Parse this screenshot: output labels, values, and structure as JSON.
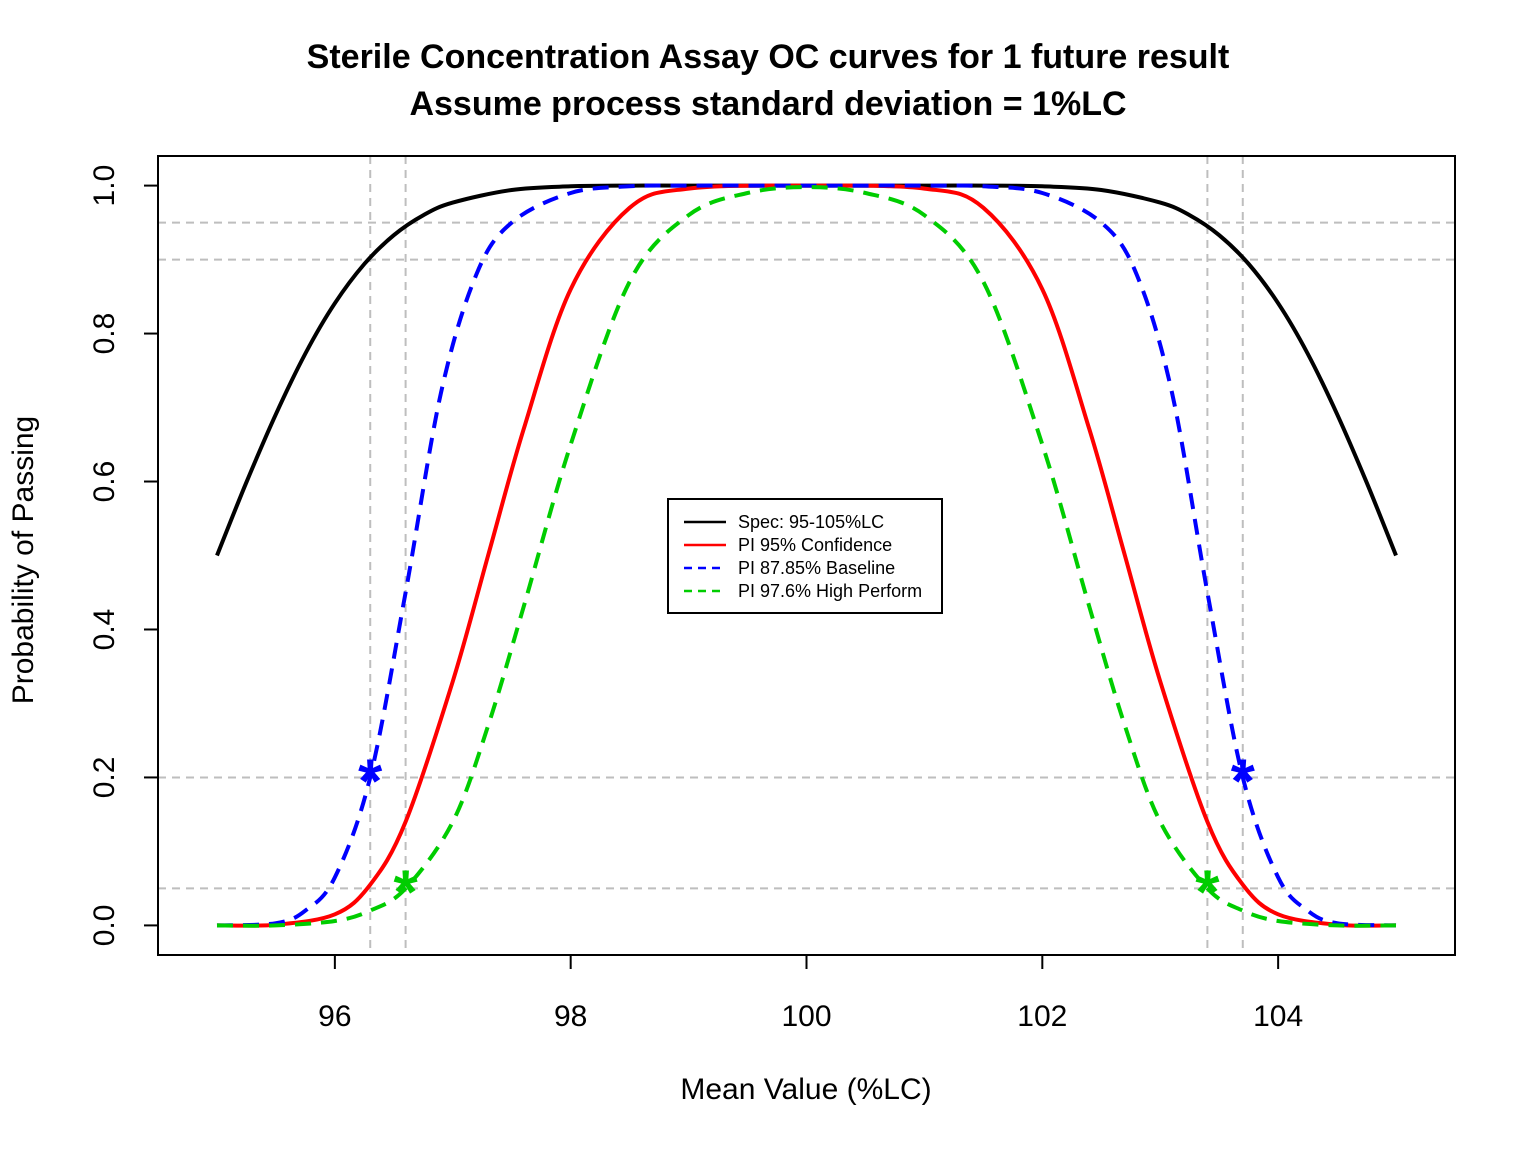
{
  "chart_data": {
    "type": "line",
    "title": "Sterile Concentration Assay OC curves for 1 future result",
    "subtitle": "Assume process standard deviation = 1%LC",
    "xlabel": "Mean Value (%LC)",
    "ylabel": "Probability of Passing",
    "xlim": [
      94.5,
      105.5
    ],
    "ylim": [
      -0.04,
      1.04
    ],
    "x_ticks": [
      96,
      98,
      100,
      102,
      104
    ],
    "y_ticks": [
      0.0,
      0.2,
      0.4,
      0.6,
      0.8,
      1.0
    ],
    "x_tick_labels": [
      "96",
      "98",
      "100",
      "102",
      "104"
    ],
    "y_tick_labels": [
      "0.0",
      "0.2",
      "0.4",
      "0.6",
      "0.8",
      "1.0"
    ],
    "grid": false,
    "reference_lines": {
      "horizontal": [
        0.05,
        0.2,
        0.9,
        0.95
      ],
      "vertical": [
        96.3,
        96.6,
        103.4,
        103.7
      ],
      "color": "#bebebe"
    },
    "legend_position": "center",
    "series": [
      {
        "name": "Spec: 95-105%LC",
        "color": "#000000",
        "style": "solid",
        "x": [
          95.0,
          95.25,
          95.5,
          95.75,
          96.0,
          96.25,
          96.5,
          96.75,
          97.0,
          97.5,
          98.0,
          98.5,
          99.0,
          100.0,
          101.0,
          101.5,
          102.0,
          102.5,
          103.0,
          103.25,
          103.5,
          103.75,
          104.0,
          104.25,
          104.5,
          104.75,
          105.0
        ],
        "y": [
          0.5,
          0.599,
          0.691,
          0.773,
          0.841,
          0.894,
          0.933,
          0.96,
          0.977,
          0.994,
          0.999,
          1.0,
          1.0,
          1.0,
          1.0,
          1.0,
          0.999,
          0.994,
          0.977,
          0.96,
          0.933,
          0.894,
          0.841,
          0.773,
          0.691,
          0.599,
          0.5
        ]
      },
      {
        "name": "PI 95% Confidence",
        "color": "#ff0000",
        "style": "solid",
        "x": [
          95.0,
          95.5,
          96.0,
          96.3,
          96.6,
          97.0,
          97.3,
          97.6,
          98.0,
          98.5,
          99.0,
          100.0,
          101.0,
          101.5,
          102.0,
          102.4,
          102.7,
          103.0,
          103.4,
          103.7,
          104.0,
          104.5,
          105.0
        ],
        "y": [
          0.0,
          0.001,
          0.015,
          0.055,
          0.14,
          0.33,
          0.5,
          0.67,
          0.86,
          0.97,
          0.996,
          1.0,
          0.996,
          0.97,
          0.86,
          0.67,
          0.5,
          0.33,
          0.14,
          0.055,
          0.015,
          0.001,
          0.0
        ]
      },
      {
        "name": "PI 87.85% Baseline",
        "color": "#0000ff",
        "style": "dashed",
        "x": [
          95.0,
          95.5,
          95.75,
          96.0,
          96.3,
          96.6,
          96.9,
          97.2,
          97.5,
          98.0,
          98.5,
          99.0,
          100.0,
          101.0,
          101.5,
          102.0,
          102.5,
          102.8,
          103.1,
          103.4,
          103.7,
          104.0,
          104.25,
          104.5,
          105.0
        ],
        "y": [
          0.0,
          0.003,
          0.02,
          0.065,
          0.2,
          0.45,
          0.72,
          0.88,
          0.95,
          0.99,
          0.999,
          1.0,
          1.0,
          1.0,
          0.999,
          0.99,
          0.95,
          0.88,
          0.72,
          0.45,
          0.2,
          0.065,
          0.02,
          0.003,
          0.0
        ]
      },
      {
        "name": "PI 97.6% High Perform",
        "color": "#00cd00",
        "style": "dashed",
        "x": [
          95.0,
          95.5,
          96.0,
          96.3,
          96.6,
          97.0,
          97.3,
          97.6,
          98.0,
          98.5,
          99.0,
          99.5,
          100.0,
          100.5,
          101.0,
          101.5,
          102.0,
          102.4,
          102.7,
          103.0,
          103.4,
          103.7,
          104.0,
          104.5,
          105.0
        ],
        "y": [
          0.0,
          0.0,
          0.006,
          0.02,
          0.05,
          0.14,
          0.27,
          0.43,
          0.65,
          0.87,
          0.96,
          0.99,
          0.998,
          0.99,
          0.96,
          0.87,
          0.65,
          0.43,
          0.27,
          0.14,
          0.05,
          0.02,
          0.006,
          0.0,
          0.0
        ]
      }
    ],
    "markers": [
      {
        "x": 96.3,
        "y": 0.2,
        "color": "#0000ff",
        "symbol": "*"
      },
      {
        "x": 103.7,
        "y": 0.2,
        "color": "#0000ff",
        "symbol": "*"
      },
      {
        "x": 96.6,
        "y": 0.05,
        "color": "#00cd00",
        "symbol": "*"
      },
      {
        "x": 103.4,
        "y": 0.05,
        "color": "#00cd00",
        "symbol": "*"
      }
    ]
  }
}
